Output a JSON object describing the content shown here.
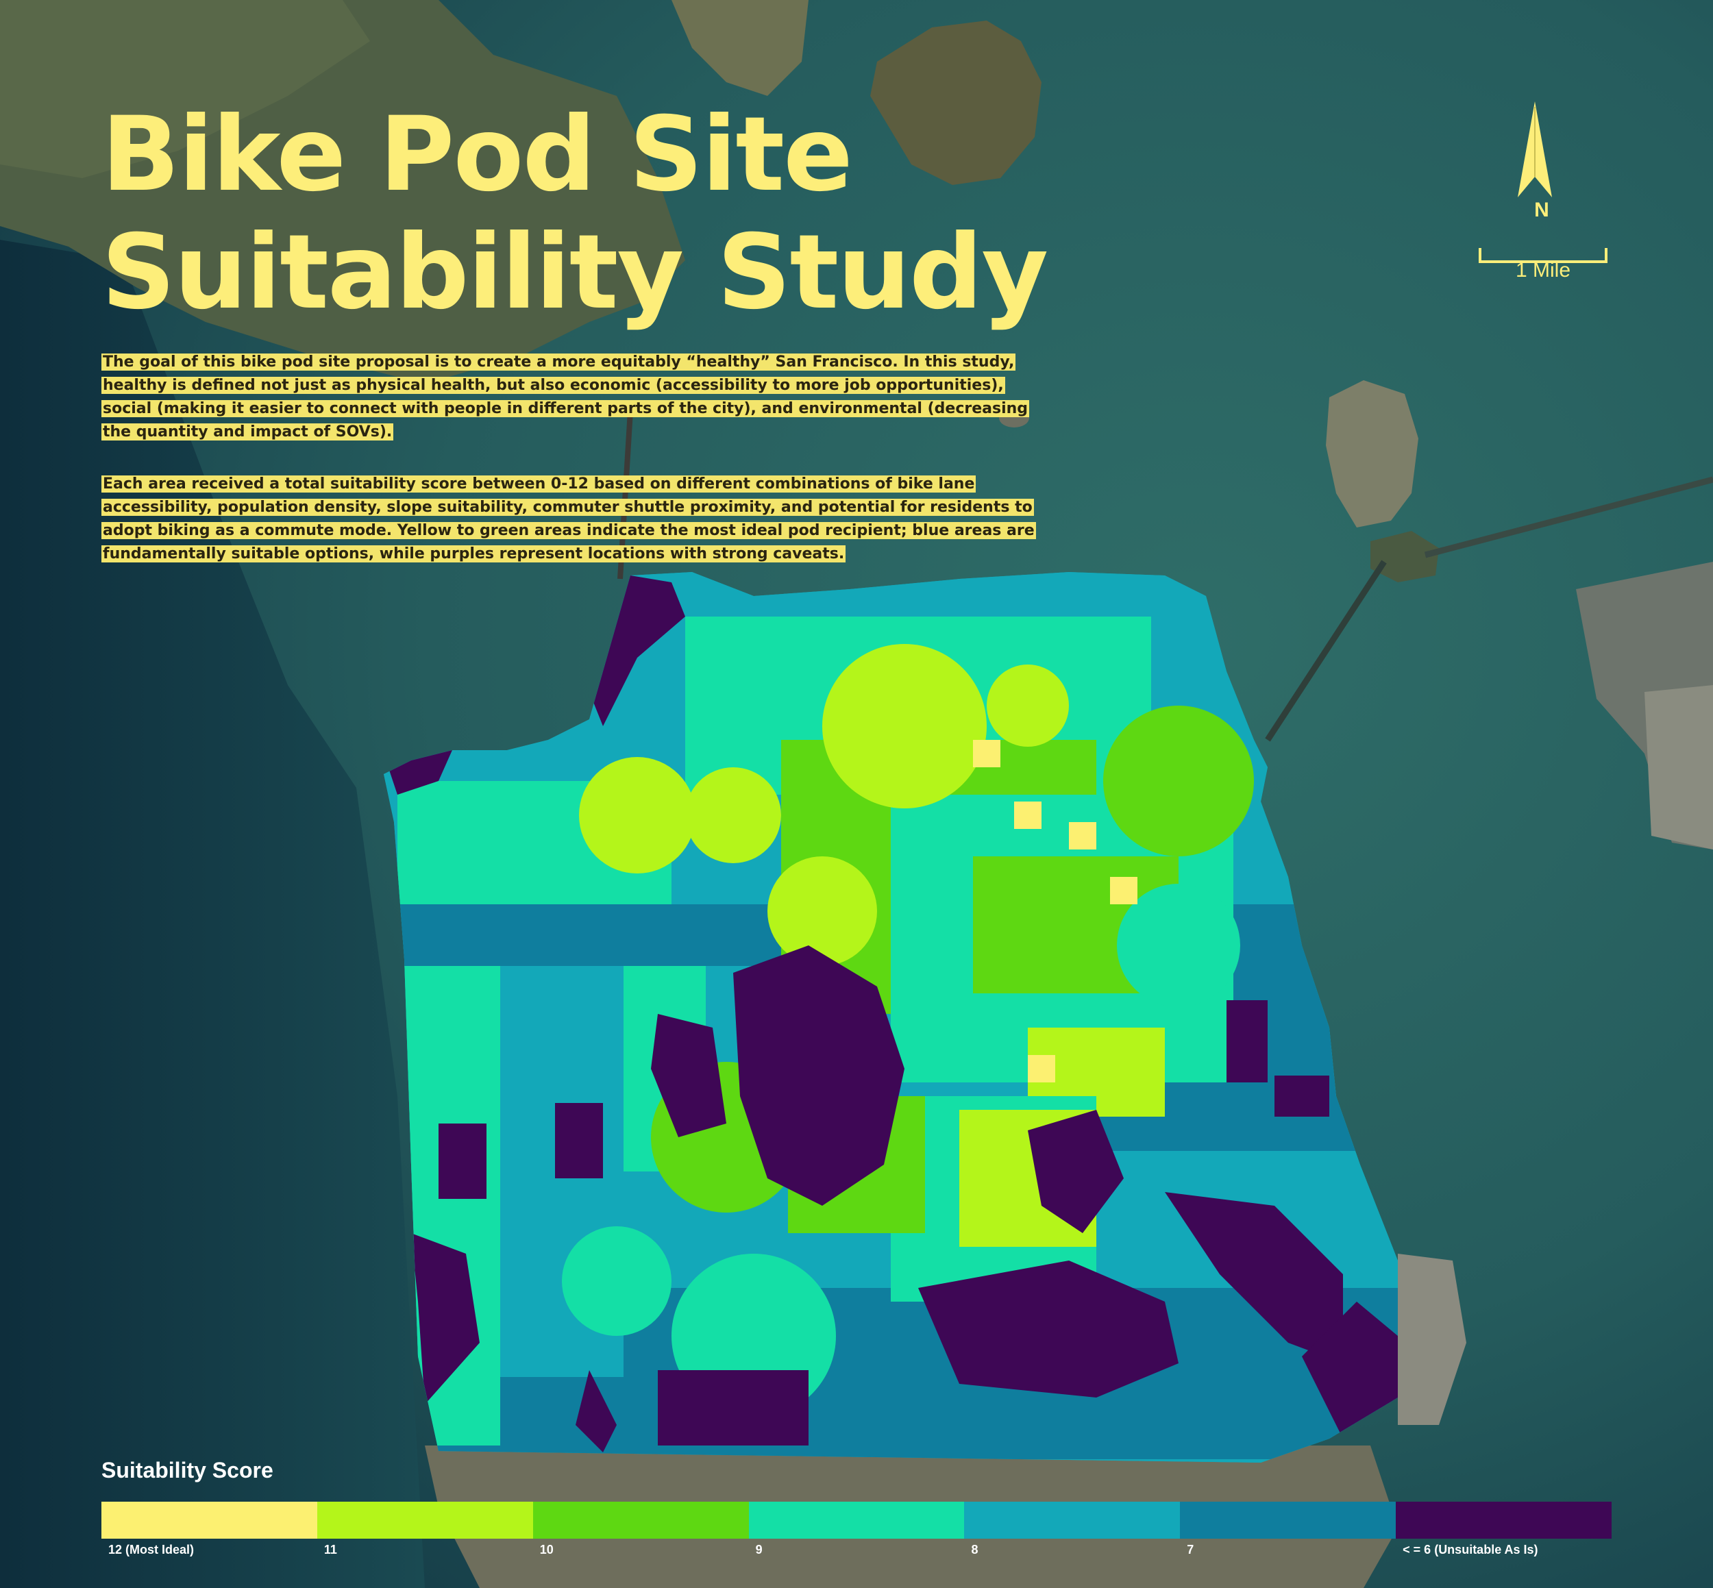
{
  "title": {
    "line1": "Bike Pod Site",
    "line2": "Suitability Study"
  },
  "description": {
    "paragraph1": "The goal of this bike pod site proposal is to create a more equitably “healthy” San Francisco. In this study, healthy is defined not just as physical health, but also economic (accessibility to more job opportunities), social (making it easier to connect with people in different parts of the city), and environmental (decreasing the quantity and impact of SOVs).",
    "paragraph2": "Each area received a total suitability score between 0-12 based on different combinations of bike lane accessibility, population density, slope suitability, commuter shuttle proximity, and potential for residents to adopt biking as a commute mode. Yellow to green areas indicate the most ideal pod recipient; blue areas are fundamentally suitable options, while purples represent locations with strong caveats."
  },
  "north_arrow": {
    "label": "N",
    "icon": "north-arrow-icon"
  },
  "scale_bar": {
    "label": "1 Mile"
  },
  "legend": {
    "title": "Suitability Score",
    "classes": [
      {
        "label": "12 (Most Ideal)",
        "color": "#fcf071"
      },
      {
        "label": "11",
        "color": "#b4f51a"
      },
      {
        "label": "10",
        "color": "#5ed812"
      },
      {
        "label": "9",
        "color": "#14dfa6"
      },
      {
        "label": "8",
        "color": "#13a8b9"
      },
      {
        "label": "7",
        "color": "#0f7e9e"
      },
      {
        "label": "< = 6 (Unsuitable As Is)",
        "color": "#3e0755"
      }
    ]
  },
  "colors": {
    "title_yellow": "#fdee7a",
    "text_highlight": "#f3e56c",
    "water": "#1f5a5c",
    "land": "#4d5e43"
  }
}
